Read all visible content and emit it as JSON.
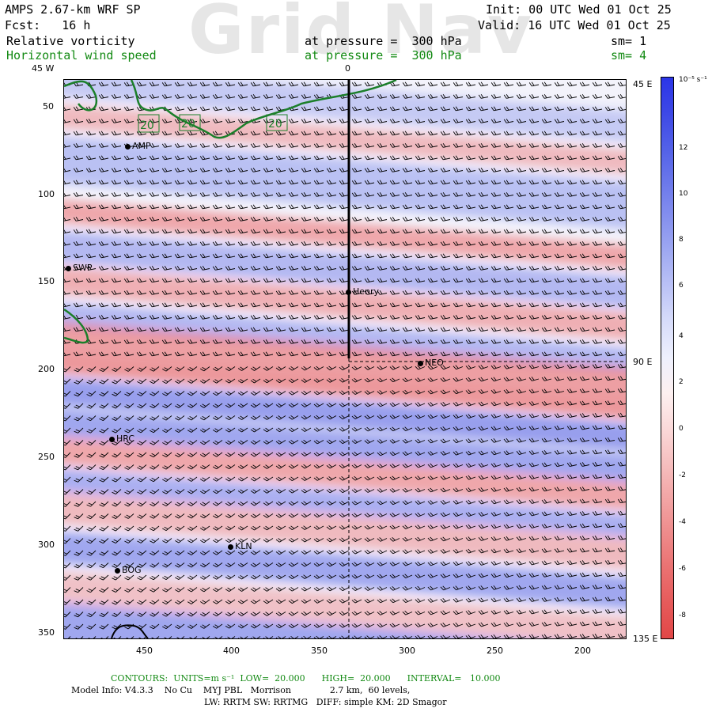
{
  "header": {
    "model": "AMPS 2.67-km WRF SP",
    "fcst": "Fcst:   16 h",
    "init": "Init: 00 UTC Wed 01 Oct 25",
    "valid": "Valid: 16 UTC Wed 01 Oct 25",
    "field1": "Relative vorticity",
    "field2": "Horizontal wind speed",
    "pressure1": "at pressure =  300 hPa",
    "pressure2": "at pressure =  300 hPa",
    "sm1": "sm= 1",
    "sm2": "sm= 4",
    "watermark": "Grid Nav"
  },
  "map": {
    "top_labels": [
      "45 W",
      "0"
    ],
    "right_labels": [
      "45 E",
      "90 E",
      "135 E"
    ],
    "x_ticks": [
      "450",
      "400",
      "350",
      "300",
      "250",
      "200"
    ],
    "y_ticks": [
      "50",
      "100",
      "150",
      "200",
      "250",
      "300",
      "350"
    ],
    "contour_labels": [
      "20",
      "20",
      "20"
    ],
    "stations": [
      "AMP",
      "SWP",
      "Henry",
      "NEO",
      "HRC",
      "KLN",
      "BOG"
    ]
  },
  "colorbar": {
    "unit": "10⁻⁵ s⁻¹",
    "labels": [
      "12",
      "10",
      "8",
      "6",
      "4",
      "2",
      "0",
      "-2",
      "-4",
      "-6",
      "-8"
    ],
    "colors": {
      "positive": "#3b4be0",
      "negative": "#e84c4c",
      "neutral": "#f7f7f7"
    }
  },
  "footer": {
    "contours": "CONTOURS:  UNITS=m s⁻¹  LOW=  20.000      HIGH=  20.000      INTERVAL=   10.000",
    "model_info": "Model Info: V4.3.3    No Cu    MYJ PBL   Morrison              2.7 km,  60 levels,",
    "physics": "LW: RRTM SW: RRTMG   DIFF: simple KM: 2D Smagor"
  }
}
